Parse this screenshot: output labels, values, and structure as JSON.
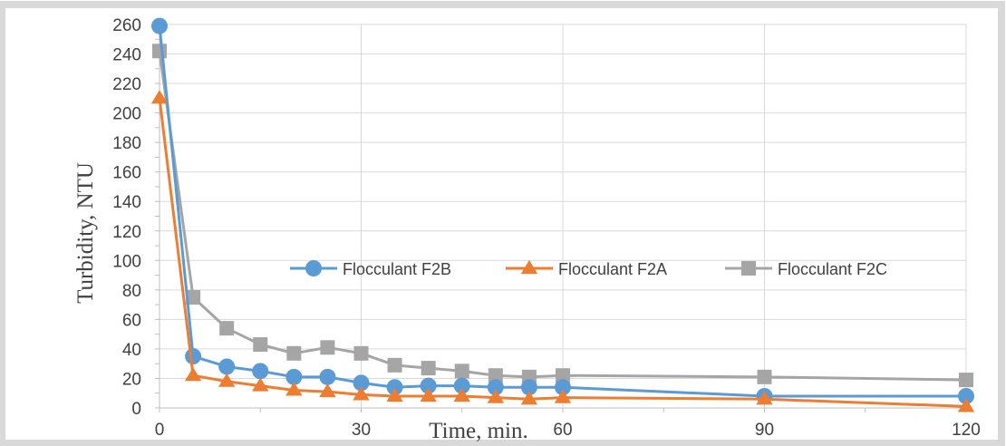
{
  "chart_data": {
    "type": "line",
    "title": "",
    "xlabel": "Time, min.",
    "ylabel": "Turbidity, NTU",
    "xlim": [
      0,
      120
    ],
    "ylim": [
      0,
      260
    ],
    "x_ticks": [
      "0",
      "30",
      "60",
      "90",
      "120"
    ],
    "y_ticks": [
      "0",
      "20",
      "40",
      "60",
      "80",
      "100",
      "120",
      "140",
      "160",
      "180",
      "200",
      "220",
      "240",
      "260"
    ],
    "grid": true,
    "legend_position": "center",
    "series": [
      {
        "name": "Flocculant F2B",
        "color": "#5b9bd5",
        "marker": "circle",
        "x": [
          0,
          5,
          10,
          15,
          20,
          25,
          30,
          35,
          40,
          45,
          50,
          55,
          60,
          90,
          120
        ],
        "y": [
          259,
          35,
          28,
          25,
          21,
          21,
          17,
          14,
          15,
          15,
          14,
          14,
          14,
          8,
          8
        ]
      },
      {
        "name": "Flocculant F2A",
        "color": "#ed7d31",
        "marker": "triangle",
        "x": [
          0,
          5,
          10,
          15,
          20,
          25,
          30,
          35,
          40,
          45,
          50,
          55,
          60,
          90,
          120
        ],
        "y": [
          210,
          22,
          18,
          15,
          12,
          11,
          9,
          8,
          8,
          8,
          7,
          6,
          7,
          6,
          1
        ]
      },
      {
        "name": "Flocculant F2C",
        "color": "#a5a5a5",
        "marker": "square",
        "x": [
          0,
          5,
          10,
          15,
          20,
          25,
          30,
          35,
          40,
          45,
          50,
          55,
          60,
          90,
          120
        ],
        "y": [
          242,
          75,
          54,
          43,
          37,
          41,
          37,
          29,
          27,
          25,
          22,
          21,
          22,
          21,
          19
        ]
      }
    ]
  }
}
